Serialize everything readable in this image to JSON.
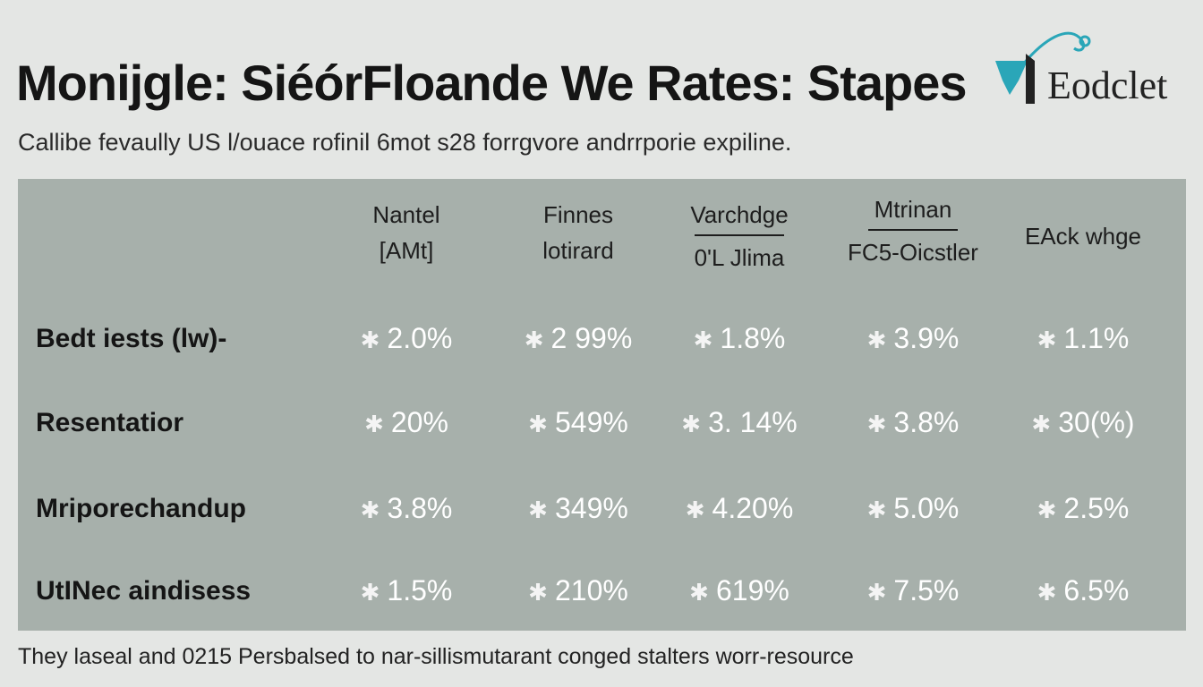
{
  "title": "Monijgle: SiéórFloande We Rates: Stapes",
  "subtitle": "Callibe fevaully US l/ouace rofinil 6mot s28 forrgvore andrrporie expiline.",
  "logo": {
    "text": "Eodclet",
    "icon": "shovel-lamp-icon",
    "colors": {
      "accent": "#2aa6b8",
      "dark": "#222222"
    }
  },
  "footer": "They laseal and 0215 Persbalsed to nar-sillismutarant conged stalters worr-resource",
  "colors": {
    "background": "#e4e6e4",
    "panel": "#a7b0ab",
    "value_text": "#ffffff",
    "label_text": "#151515"
  },
  "chart_data": {
    "type": "table",
    "columns": [
      {
        "lines": [
          "Nantel",
          "[AMt]"
        ]
      },
      {
        "lines": [
          "Finnes",
          "lotirard"
        ]
      },
      {
        "lines": [
          "Varchdge",
          "0'L Jlima"
        ],
        "rule": true
      },
      {
        "lines": [
          "Mtrinan",
          "FC5-Oicstler"
        ],
        "rule": true
      },
      {
        "lines": [
          "EAck whge"
        ]
      }
    ],
    "rows": [
      {
        "label": "Bedt iests (lw)-",
        "values": [
          "2.0%",
          "2 99%",
          "1.8%",
          "3.9%",
          "1.1%"
        ]
      },
      {
        "label": "Resentatior",
        "values": [
          "20%",
          "549%",
          "3. 14%",
          "3.8%",
          "30(%)"
        ]
      },
      {
        "label": "Mriporechandup",
        "values": [
          "3.8%",
          "349%",
          "4.20%",
          "5.0%",
          "2.5%"
        ]
      },
      {
        "label": "UtINec aindisess",
        "values": [
          "1.5%",
          "210%",
          "619%",
          "7.5%",
          "6.5%"
        ]
      }
    ],
    "marker": "✱"
  }
}
